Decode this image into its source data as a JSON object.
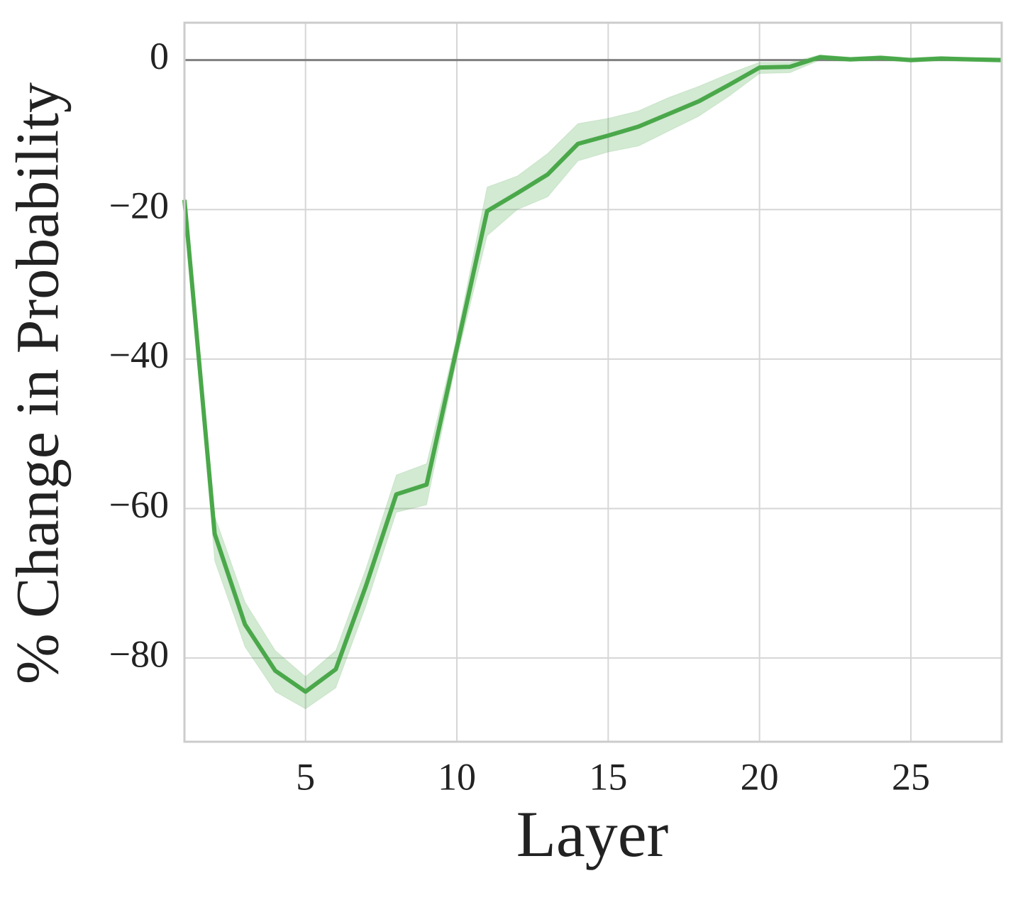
{
  "chart_data": {
    "type": "line",
    "x_label": "Layer",
    "y_label": "% Change in Probability",
    "x": [
      1,
      2,
      3,
      4,
      5,
      6,
      7,
      8,
      9,
      10,
      11,
      12,
      13,
      14,
      15,
      16,
      17,
      18,
      19,
      20,
      21,
      22,
      23,
      24,
      25,
      26,
      27,
      28
    ],
    "series": [
      {
        "color": "#4aa84a",
        "values": [
          -18.7,
          -63.4,
          -75.5,
          -81.7,
          -84.5,
          -81.5,
          -70.3,
          -58.1,
          -56.8,
          -38.5,
          -20.2,
          -17.8,
          -15.3,
          -11.2,
          -10.1,
          -8.9,
          -7.2,
          -5.5,
          -3.3,
          -1.0,
          -0.9,
          0.4,
          0.1,
          0.3,
          0,
          0.2,
          0.1,
          0
        ],
        "lower": [
          -20,
          -67,
          -78.5,
          -84.5,
          -86.8,
          -84,
          -73,
          -60.5,
          -59.5,
          -40,
          -23.5,
          -20,
          -18.3,
          -13.5,
          -12.3,
          -11.5,
          -9.5,
          -7.5,
          -4.8,
          -1.8,
          -1.7,
          0,
          -0.2,
          0,
          -0.3,
          -0.1,
          -0.2,
          -0.3
        ],
        "upper": [
          -17.5,
          -61,
          -72.5,
          -79,
          -82.5,
          -79,
          -68,
          -55.5,
          -54,
          -37,
          -17,
          -15.5,
          -12.5,
          -8.5,
          -7.8,
          -6.8,
          -5,
          -3.5,
          -1.8,
          -0.3,
          -0.3,
          0.7,
          0.4,
          0.6,
          0.3,
          0.5,
          0.3,
          0.3
        ]
      }
    ],
    "xlim": [
      1,
      28
    ],
    "ylim": [
      -91.2,
      5
    ],
    "xticks": [
      5,
      10,
      15,
      20,
      25
    ],
    "yticks": [
      {
        "value": -80,
        "label": "−80"
      },
      {
        "value": -60,
        "label": "−60"
      },
      {
        "value": -40,
        "label": "−40"
      },
      {
        "value": -20,
        "label": "−20"
      },
      0
    ],
    "hline": 0,
    "grid": true
  }
}
